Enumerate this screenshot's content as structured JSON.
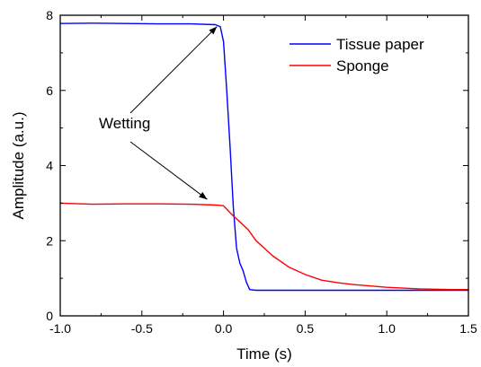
{
  "chart_data": {
    "type": "line",
    "title": "",
    "xlabel": "Time (s)",
    "ylabel": "Amplitude (a.u.)",
    "xlim": [
      -1.0,
      1.5
    ],
    "ylim": [
      0,
      8
    ],
    "xticks": [
      "-1.0",
      "-0.5",
      "0.0",
      "0.5",
      "1.0",
      "1.5"
    ],
    "yticks": [
      "0",
      "2",
      "4",
      "6",
      "8"
    ],
    "grid": false,
    "legend_position": "top-right",
    "series": [
      {
        "name": "Tissue paper",
        "color": "#0000ff",
        "x": [
          -1.0,
          -0.8,
          -0.6,
          -0.4,
          -0.2,
          -0.05,
          -0.02,
          0.0,
          0.02,
          0.04,
          0.06,
          0.08,
          0.1,
          0.12,
          0.14,
          0.16,
          0.2,
          0.3,
          0.5,
          0.7,
          1.0,
          1.2,
          1.5
        ],
        "y": [
          7.78,
          7.79,
          7.78,
          7.77,
          7.77,
          7.75,
          7.7,
          7.3,
          6.0,
          4.5,
          2.9,
          1.8,
          1.4,
          1.2,
          0.9,
          0.7,
          0.68,
          0.68,
          0.68,
          0.68,
          0.68,
          0.68,
          0.68
        ]
      },
      {
        "name": "Sponge",
        "color": "#ff0000",
        "x": [
          -1.0,
          -0.8,
          -0.6,
          -0.4,
          -0.2,
          -0.05,
          0.0,
          0.05,
          0.1,
          0.15,
          0.2,
          0.25,
          0.3,
          0.4,
          0.5,
          0.6,
          0.7,
          0.8,
          1.0,
          1.2,
          1.4,
          1.5
        ],
        "y": [
          3.0,
          2.97,
          2.98,
          2.98,
          2.97,
          2.95,
          2.93,
          2.7,
          2.5,
          2.3,
          2.0,
          1.8,
          1.6,
          1.3,
          1.1,
          0.95,
          0.88,
          0.83,
          0.76,
          0.72,
          0.7,
          0.7
        ]
      }
    ],
    "annotations": [
      {
        "text": "Wetting"
      }
    ]
  }
}
